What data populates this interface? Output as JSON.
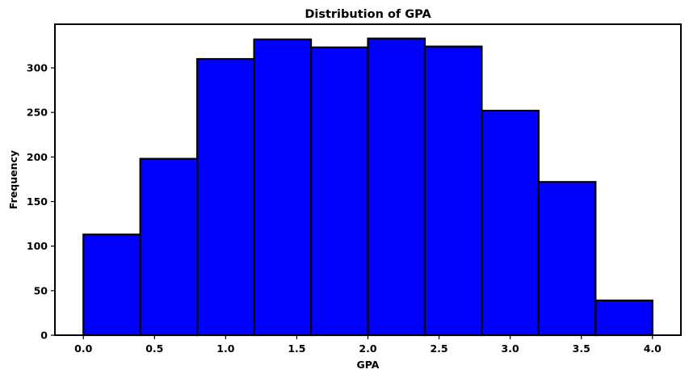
{
  "chart_data": {
    "type": "bar",
    "title": "Distribution of GPA",
    "xlabel": "GPA",
    "ylabel": "Frequency",
    "bin_edges": [
      0.0,
      0.4,
      0.8,
      1.2,
      1.6,
      2.0,
      2.4,
      2.8,
      3.2,
      3.6,
      4.0
    ],
    "values": [
      113,
      198,
      310,
      332,
      323,
      333,
      324,
      252,
      172,
      39
    ],
    "xlim": [
      -0.2,
      4.2
    ],
    "ylim": [
      0,
      349
    ],
    "xticks": [
      "0.0",
      "0.5",
      "1.0",
      "1.5",
      "2.0",
      "2.5",
      "3.0",
      "3.5",
      "4.0"
    ],
    "yticks": [
      "0",
      "50",
      "100",
      "150",
      "200",
      "250",
      "300"
    ],
    "bar_color": "#0000ff",
    "edge_color": "#000000",
    "grid": false,
    "legend": "none"
  }
}
